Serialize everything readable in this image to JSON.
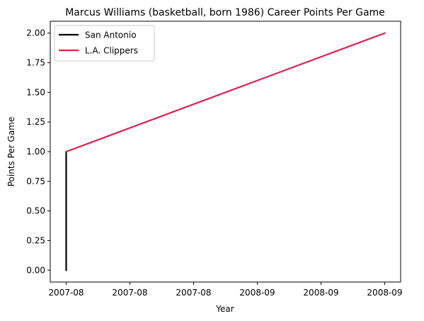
{
  "chart_data": {
    "type": "line",
    "title": "Marcus Williams (basketball, born 1986) Career Points Per Game",
    "xlabel": "Year",
    "ylabel": "Points Per Game",
    "x_tick_labels": [
      "2007-08",
      "2007-08",
      "2007-08",
      "2008-09",
      "2008-09",
      "2008-09"
    ],
    "y_ticks": [
      0.0,
      0.25,
      0.5,
      0.75,
      1.0,
      1.25,
      1.5,
      1.75,
      2.0
    ],
    "y_tick_labels": [
      "0.00",
      "0.25",
      "0.50",
      "0.75",
      "1.00",
      "1.25",
      "1.50",
      "1.75",
      "2.00"
    ],
    "ylim": [
      -0.1,
      2.1
    ],
    "grid": false,
    "legend_position": "top-left",
    "series": [
      {
        "name": "San Antonio",
        "color": "#000000",
        "points": [
          {
            "x": "2007-08",
            "y": 0.0
          },
          {
            "x": "2007-08",
            "y": 1.0
          }
        ]
      },
      {
        "name": "L.A. Clippers",
        "color": "#e3204f",
        "points": [
          {
            "x": "2007-08",
            "y": 1.0
          },
          {
            "x": "2008-09",
            "y": 2.0
          }
        ]
      }
    ]
  }
}
